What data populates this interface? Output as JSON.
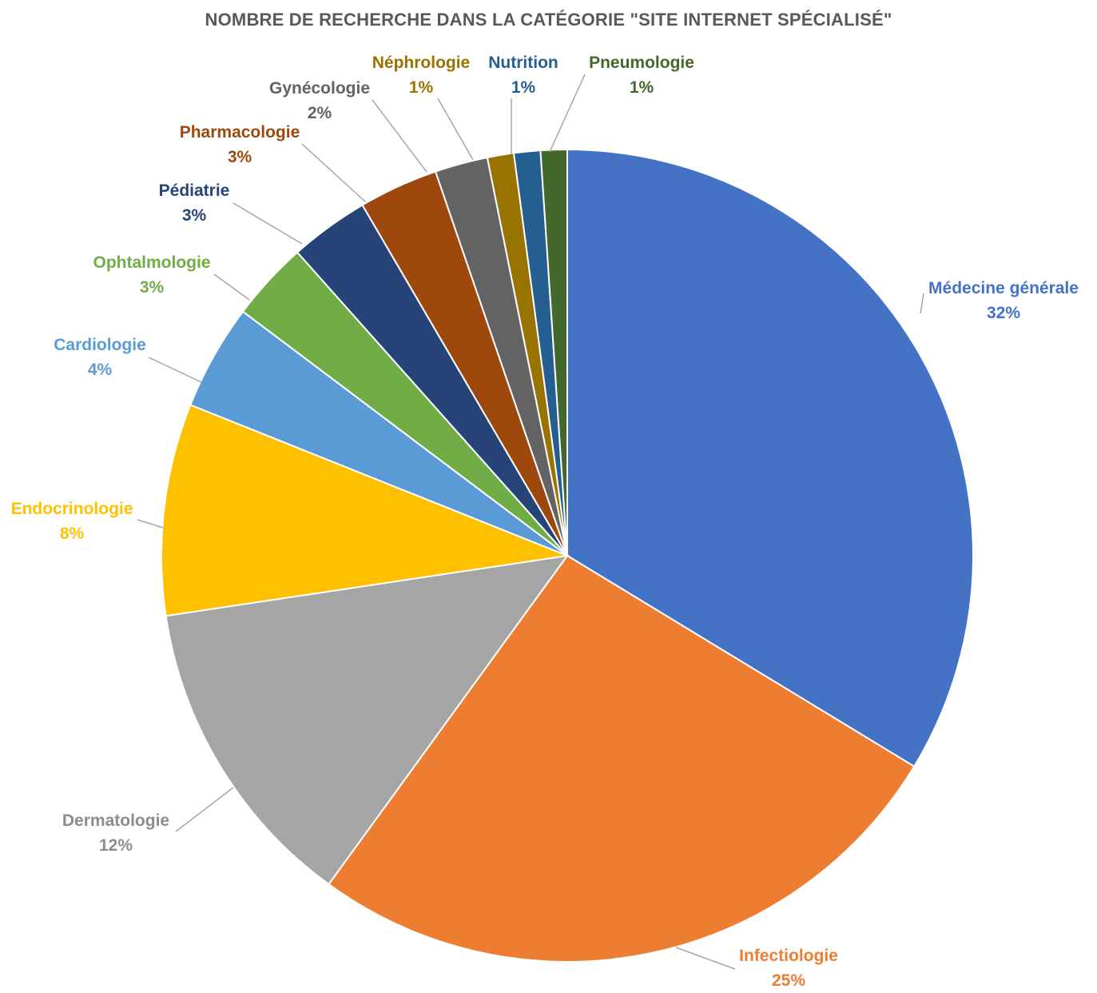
{
  "chart_data": {
    "type": "pie",
    "title": "NOMBRE DE RECHERCHE DANS LA CATÉGORIE \"SITE INTERNET SPÉCIALISÉ\"",
    "slices": [
      {
        "label": "Médecine générale",
        "value": 32,
        "value_label": "32%",
        "color": "#4472C4"
      },
      {
        "label": "Infectiologie",
        "value": 25,
        "value_label": "25%",
        "color": "#ED7D31"
      },
      {
        "label": "Dermatologie",
        "value": 12,
        "value_label": "12%",
        "color": "#A5A5A5"
      },
      {
        "label": "Endocrinologie",
        "value": 8,
        "value_label": "8%",
        "color": "#FFC000"
      },
      {
        "label": "Cardiologie",
        "value": 4,
        "value_label": "4%",
        "color": "#5B9BD5"
      },
      {
        "label": "Ophtalmologie",
        "value": 3,
        "value_label": "3%",
        "color": "#70AD47"
      },
      {
        "label": "Pédiatrie",
        "value": 3,
        "value_label": "3%",
        "color": "#264478"
      },
      {
        "label": "Pharmacologie",
        "value": 3,
        "value_label": "3%",
        "color": "#9E480E"
      },
      {
        "label": "Gynécologie",
        "value": 2,
        "value_label": "2%",
        "color": "#636363"
      },
      {
        "label": "Néphrologie",
        "value": 1,
        "value_label": "1%",
        "color": "#997300"
      },
      {
        "label": "Nutrition",
        "value": 1,
        "value_label": "1%",
        "color": "#255E91"
      },
      {
        "label": "Pneumologie",
        "value": 1,
        "value_label": "1%",
        "color": "#43682B"
      }
    ],
    "legend": "none",
    "data_labels": "outside-with-leader-lines"
  }
}
